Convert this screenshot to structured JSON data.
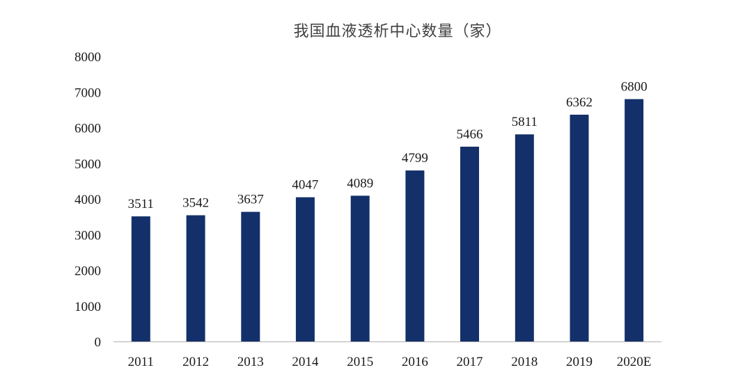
{
  "chart_data": {
    "type": "bar",
    "title": "我国血液透析中心数量（家）",
    "xlabel": "",
    "ylabel": "",
    "categories": [
      "2011",
      "2012",
      "2013",
      "2014",
      "2015",
      "2016",
      "2017",
      "2018",
      "2019",
      "2020E"
    ],
    "values": [
      3511,
      3542,
      3637,
      4047,
      4089,
      4799,
      5466,
      5811,
      6362,
      6800
    ],
    "ylim": [
      0,
      8000
    ],
    "yticks": [
      0,
      1000,
      2000,
      3000,
      4000,
      5000,
      6000,
      7000,
      8000
    ],
    "bar_color": "#14306A",
    "grid": false,
    "legend": "none",
    "data_labels": true
  }
}
